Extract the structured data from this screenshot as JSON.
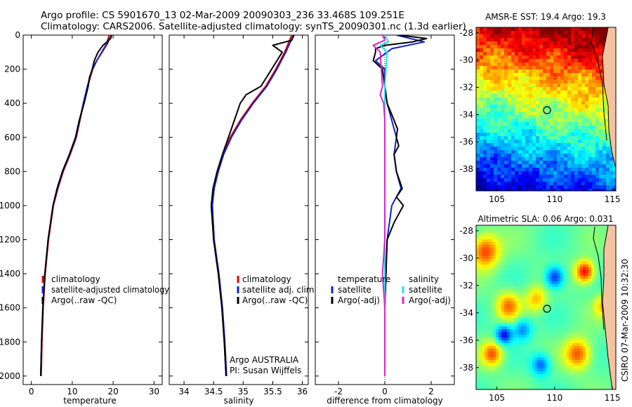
{
  "header": {
    "line1": "Argo profile: CS 5901670_13 02-Mar-2009 20090303_236 33.468S 109.251E",
    "line2": "Climatology: CARS2006. Satellite-adjusted climatology: synTS_20090301.nc (1.3d earlier)"
  },
  "side_note": "CSIRO 07-Mar-2009 10:32:30",
  "colors": {
    "red": "#e00000",
    "blue": "#1020d0",
    "black": "#000000",
    "cyan": "#20e0e8",
    "magenta": "#e020d0"
  },
  "chart_data": [
    {
      "type": "line",
      "name": "temperature",
      "xlabel": "temperature",
      "ylabel": "",
      "xlim": [
        -2,
        32
      ],
      "ylim": [
        2050,
        0
      ],
      "xticks": [
        0,
        10,
        20,
        30
      ],
      "yticks": [
        0,
        200,
        400,
        600,
        800,
        1000,
        1200,
        1400,
        1600,
        1800,
        2000
      ],
      "legend": [
        "climatology",
        "satellite-adjusted climatology",
        "Argo(..raw -QC)"
      ],
      "series": [
        {
          "name": "climatology",
          "color": "red",
          "depth": [
            0,
            50,
            100,
            150,
            200,
            300,
            400,
            500,
            600,
            700,
            800,
            900,
            1000,
            1200,
            1400,
            1600,
            1800,
            2000
          ],
          "values": [
            19.0,
            18.4,
            17.2,
            16.0,
            15.0,
            13.8,
            12.8,
            11.9,
            11.0,
            9.5,
            7.8,
            6.5,
            5.4,
            4.2,
            3.4,
            2.9,
            2.6,
            2.4
          ]
        },
        {
          "name": "satellite-adjusted climatology",
          "color": "blue",
          "depth": [
            0,
            50,
            100,
            150,
            200,
            300,
            400,
            500,
            600,
            700,
            800,
            900,
            1000,
            1200,
            1400,
            1600,
            1800,
            2000
          ],
          "values": [
            19.5,
            18.6,
            17.3,
            16.0,
            14.9,
            13.7,
            12.7,
            11.8,
            10.9,
            9.4,
            7.7,
            6.4,
            5.3,
            4.1,
            3.3,
            2.8,
            2.5,
            2.3
          ]
        },
        {
          "name": "Argo(..raw -QC)",
          "color": "black",
          "depth": [
            0,
            20,
            60,
            100,
            150,
            200,
            250,
            300,
            400,
            500,
            600,
            700,
            800,
            900,
            1000,
            1200,
            1400,
            1600,
            1800,
            2000
          ],
          "values": [
            19.6,
            19.4,
            17.5,
            16.3,
            15.4,
            14.9,
            14.2,
            13.9,
            12.9,
            11.7,
            10.8,
            9.3,
            7.6,
            6.3,
            5.3,
            4.1,
            3.3,
            2.8,
            2.5,
            2.3
          ]
        }
      ]
    },
    {
      "type": "line",
      "name": "salinity",
      "xlabel": "salinity",
      "ylabel": "",
      "xlim": [
        33.75,
        36.1
      ],
      "ylim": [
        2050,
        0
      ],
      "xticks": [
        34,
        34.5,
        35,
        35.5,
        36
      ],
      "yticks": [
        0,
        200,
        400,
        600,
        800,
        1000,
        1200,
        1400,
        1600,
        1800,
        2000
      ],
      "legend": [
        "climatology",
        "satellite adj. clim.",
        "Argo(..raw -QC)"
      ],
      "annotation": [
        "Argo AUSTRALIA",
        "PI: Susan Wijffels"
      ],
      "series": [
        {
          "name": "climatology",
          "color": "red",
          "depth": [
            0,
            100,
            200,
            300,
            400,
            500,
            600,
            700,
            800,
            900,
            1000,
            1200,
            1400,
            1600,
            1800,
            2000
          ],
          "values": [
            35.82,
            35.7,
            35.55,
            35.38,
            35.15,
            34.95,
            34.78,
            34.66,
            34.57,
            34.5,
            34.47,
            34.5,
            34.58,
            34.64,
            34.68,
            34.71
          ]
        },
        {
          "name": "satellite adj. clim.",
          "color": "blue",
          "depth": [
            0,
            100,
            200,
            300,
            400,
            500,
            600,
            700,
            800,
            900,
            1000,
            1200,
            1400,
            1600,
            1800,
            2000
          ],
          "values": [
            35.85,
            35.72,
            35.57,
            35.4,
            35.17,
            34.97,
            34.8,
            34.67,
            34.58,
            34.51,
            34.48,
            34.51,
            34.59,
            34.65,
            34.69,
            34.72
          ]
        },
        {
          "name": "Argo(..raw -QC)",
          "color": "black",
          "depth": [
            0,
            30,
            60,
            100,
            200,
            300,
            350,
            400,
            500,
            600,
            700,
            800,
            900,
            1000,
            1200,
            1400,
            1600,
            1800,
            2000
          ],
          "values": [
            35.86,
            35.82,
            35.5,
            35.66,
            35.48,
            35.3,
            35.05,
            34.95,
            34.85,
            34.75,
            34.65,
            34.56,
            34.49,
            34.46,
            34.5,
            34.58,
            34.64,
            34.68,
            34.71
          ]
        }
      ]
    },
    {
      "type": "line",
      "name": "difference",
      "xlabel": "difference from climatology",
      "ylabel": "",
      "xlim": [
        -3,
        3
      ],
      "ylim": [
        2050,
        0
      ],
      "xticks": [
        -2,
        0,
        2
      ],
      "yticks": [
        0,
        200,
        400,
        600,
        800,
        1000,
        1200,
        1400,
        1600,
        1800,
        2000
      ],
      "legend_headers": [
        "temperature",
        "salinity"
      ],
      "legend": [
        "satellite",
        "Argo(-adj)",
        "satellite",
        "Argo(-adj)"
      ],
      "series": [
        {
          "name": "temperature satellite",
          "color": "blue",
          "depth": [
            0,
            40,
            80,
            150,
            200,
            300,
            400,
            500,
            600,
            700,
            800,
            900,
            950,
            1000,
            1200,
            1400,
            1600,
            1800,
            2000
          ],
          "values": [
            0.5,
            1.7,
            0.3,
            -0.4,
            0.0,
            0.0,
            0.1,
            0.3,
            0.5,
            0.4,
            0.5,
            0.7,
            0.5,
            0.3,
            0.1,
            0.05,
            0.0,
            0.0,
            0.0
          ]
        },
        {
          "name": "temperature Argo(-adj)",
          "color": "black",
          "depth": [
            0,
            20,
            40,
            60,
            80,
            100,
            150,
            200,
            300,
            400,
            500,
            550,
            600,
            650,
            700,
            800,
            900,
            950,
            1000,
            1100,
            1200,
            1400,
            1600,
            1800,
            2000
          ],
          "values": [
            0.6,
            1.8,
            1.2,
            0.0,
            -0.4,
            -0.4,
            -0.5,
            -0.1,
            0.0,
            0.1,
            0.4,
            0.55,
            0.5,
            0.6,
            0.4,
            0.5,
            0.75,
            0.5,
            0.8,
            0.4,
            0.1,
            0.05,
            0.0,
            0.0,
            0.0
          ]
        },
        {
          "name": "salinity satellite",
          "color": "cyan",
          "depth": [
            0,
            40,
            60,
            100,
            200,
            300,
            400,
            500,
            600,
            800,
            1000,
            1200,
            1400,
            1600,
            1800,
            2000
          ],
          "values": [
            0.0,
            0.15,
            -0.2,
            0.1,
            0.05,
            0.0,
            0.0,
            0.0,
            0.0,
            0.0,
            0.0,
            0.0,
            0.0,
            0.0,
            0.0,
            0.0
          ]
        },
        {
          "name": "salinity Argo(-adj)",
          "color": "magenta",
          "depth": [
            0,
            30,
            60,
            100,
            200,
            300,
            350,
            400,
            500,
            600,
            700,
            800,
            1000,
            1200,
            1400,
            1600,
            1800,
            2000
          ],
          "values": [
            -0.1,
            0.0,
            -0.5,
            -0.2,
            -0.15,
            -0.1,
            -0.2,
            -0.05,
            0.0,
            0.0,
            0.0,
            0.0,
            0.0,
            0.0,
            -0.1,
            0.0,
            0.0,
            0.0
          ]
        }
      ]
    },
    {
      "type": "heatmap",
      "name": "sst_map",
      "title": "AMSR-E SST: 19.4  Argo: 19.3",
      "xlim": [
        103.2,
        115.3
      ],
      "ylim": [
        -39.6,
        -27.6
      ],
      "xticks": [
        105,
        110,
        115
      ],
      "yticks": [
        -28,
        -30,
        -32,
        -34,
        -36,
        -38
      ],
      "argo_position": {
        "lon": 109.251,
        "lat": -33.468
      }
    },
    {
      "type": "heatmap",
      "name": "sla_map",
      "title": "Altimetric SLA: 0.06  Argo: 0.031",
      "xlim": [
        103.2,
        115.3
      ],
      "ylim": [
        -39.6,
        -27.6
      ],
      "xticks": [
        105,
        110,
        115
      ],
      "yticks": [
        -28,
        -30,
        -32,
        -34,
        -36,
        -38
      ],
      "argo_position": {
        "lon": 109.251,
        "lat": -33.468
      }
    }
  ]
}
